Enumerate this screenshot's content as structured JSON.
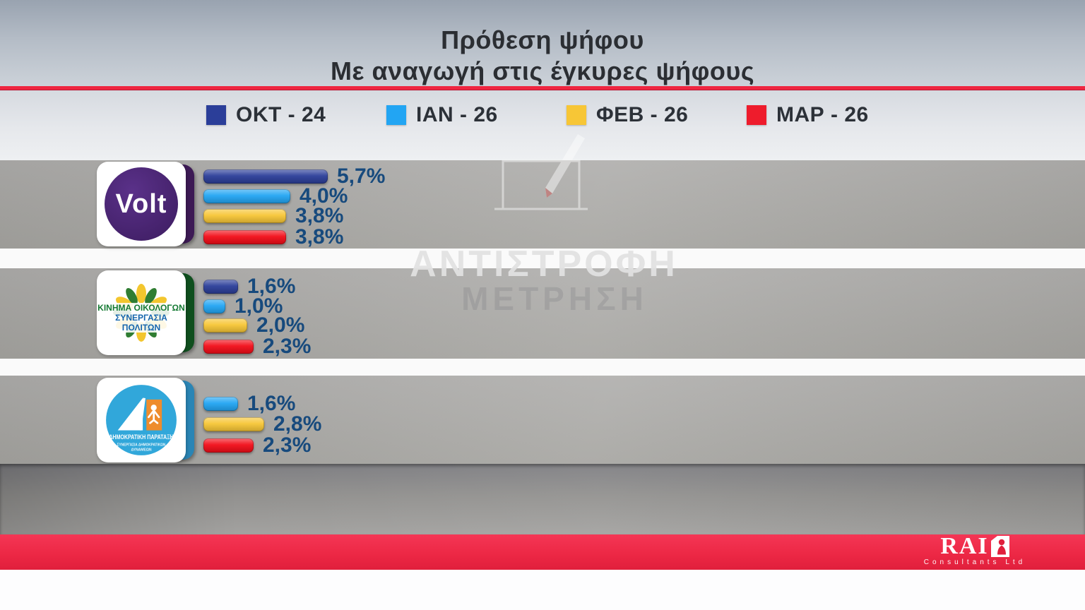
{
  "title": {
    "line1": "Πρόθεση ψήφου",
    "line2": "Με αναγωγή στις έγκυρες ψήφους"
  },
  "legend": {
    "items": [
      {
        "label": "ΟΚΤ - 24",
        "color": "#2b3e99"
      },
      {
        "label": "ΙΑΝ - 26",
        "color": "#22a5f3"
      },
      {
        "label": "ΦΕΒ - 26",
        "color": "#f7c636"
      },
      {
        "label": "ΜΑΡ - 26",
        "color": "#ee1c2c"
      }
    ]
  },
  "watermark": {
    "line1": "ΑΝΤΙΣΤΡΟΦΗ",
    "line2": "ΜΕΤΡΗΣΗ"
  },
  "parties": [
    {
      "name": "Volt",
      "spine_color": "#3d1a55",
      "logo": {
        "line1": "Volt"
      },
      "bars": [
        {
          "period": "ΟΚΤ - 24",
          "value": 5.7,
          "label": "5,7%",
          "color": "#2b3e99"
        },
        {
          "period": "ΙΑΝ - 26",
          "value": 4.0,
          "label": "4,0%",
          "color": "#22a5f3"
        },
        {
          "period": "ΦΕΒ - 26",
          "value": 3.8,
          "label": "3,8%",
          "color": "#f7c636"
        },
        {
          "period": "ΜΑΡ - 26",
          "value": 3.8,
          "label": "3,8%",
          "color": "#f20d18"
        }
      ]
    },
    {
      "name": "ΚΙΝΗΜΑ ΟΙΚΟΛΟΓΩΝ ΣΥΝΕΡΓΑΣΙΑ ΠΟΛΙΤΩΝ",
      "spine_color": "#0f4f1e",
      "logo": {
        "line1": "ΚΙΝΗΜΑ ΟΙΚΟΛΟΓΩΝ",
        "line2": "ΣΥΝΕΡΓΑΣΙΑ ΠΟΛΙΤΩΝ"
      },
      "bars": [
        {
          "period": "ΟΚΤ - 24",
          "value": 1.6,
          "label": "1,6%",
          "color": "#2b3e99"
        },
        {
          "period": "ΙΑΝ - 26",
          "value": 1.0,
          "label": "1,0%",
          "color": "#22a5f3"
        },
        {
          "period": "ΦΕΒ - 26",
          "value": 2.0,
          "label": "2,0%",
          "color": "#f7c636"
        },
        {
          "period": "ΜΑΡ - 26",
          "value": 2.3,
          "label": "2,3%",
          "color": "#f20d18"
        }
      ]
    },
    {
      "name": "ΔΗΜΟΚΡΑΤΙΚΗ ΠΑΡΑΤΑΞΗ",
      "spine_color": "#2a85b5",
      "logo": {
        "line1": "ΔΗΜΟΚΡΑΤΙΚΗ ΠΑΡΑΤΑΞΗ",
        "line2": "ΣΥΝΕΡΓΑΣΙΑ ΔΗΜΟΚΡΑΤΙΚΩΝ",
        "line3": "ΔΥΝΑΜΕΩΝ"
      },
      "bars": [
        {
          "period": "ΙΑΝ - 26",
          "value": 1.6,
          "label": "1,6%",
          "color": "#22a5f3"
        },
        {
          "period": "ΦΕΒ - 26",
          "value": 2.8,
          "label": "2,8%",
          "color": "#f7c636"
        },
        {
          "period": "ΜΑΡ - 26",
          "value": 2.3,
          "label": "2,3%",
          "color": "#f20d18"
        }
      ]
    }
  ],
  "branding": {
    "logo_text": "RAI",
    "logo_sub": "Consultants Ltd"
  },
  "colors": {
    "title_separator": "#ef2540",
    "footer_strip": "#ee2b48",
    "value_text": "#174a7d"
  },
  "chart_data": {
    "type": "bar",
    "orientation": "horizontal",
    "title": "Πρόθεση ψήφου",
    "subtitle": "Με αναγωγή στις έγκυρες ψήφους",
    "unit": "%",
    "categories": [
      "Volt",
      "ΚΙΝΗΜΑ ΟΙΚΟΛΟΓΩΝ ΣΥΝΕΡΓΑΣΙΑ ΠΟΛΙΤΩΝ",
      "ΔΗΜΟΚΡΑΤΙΚΗ ΠΑΡΑΤΑΞΗ"
    ],
    "series": [
      {
        "name": "ΟΚΤ - 24",
        "color": "#2b3e99",
        "values": [
          5.7,
          1.6,
          null
        ]
      },
      {
        "name": "ΙΑΝ - 26",
        "color": "#22a5f3",
        "values": [
          4.0,
          1.0,
          1.6
        ]
      },
      {
        "name": "ΦΕΒ - 26",
        "color": "#f7c636",
        "values": [
          3.8,
          2.0,
          2.8
        ]
      },
      {
        "name": "ΜΑΡ - 26",
        "color": "#f20d18",
        "values": [
          3.8,
          2.3,
          2.3
        ]
      }
    ],
    "legend_position": "top",
    "grid": false,
    "xlim": [
      0,
      6
    ]
  }
}
